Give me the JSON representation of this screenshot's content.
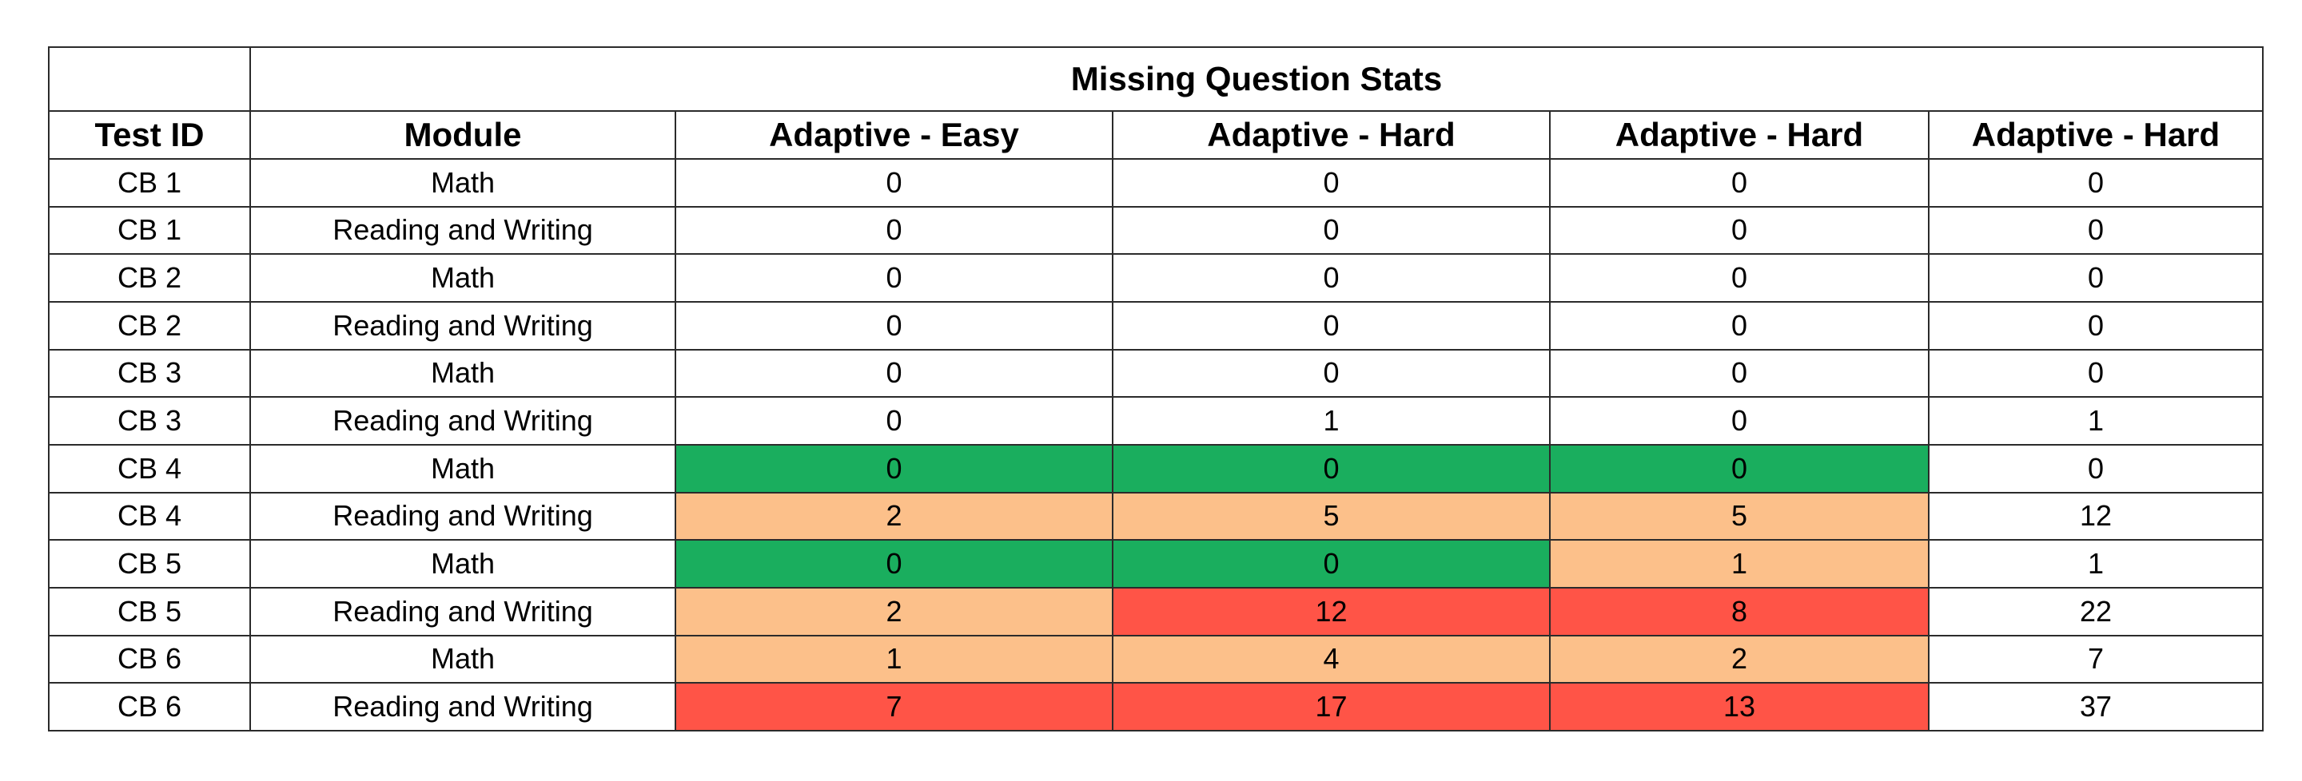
{
  "table": {
    "title": "Missing Question Stats",
    "headers": [
      "Test ID",
      "Module",
      "Adaptive - Easy",
      "Adaptive - Hard",
      "Adaptive - Hard",
      "Adaptive - Hard"
    ],
    "rows": [
      {
        "test_id": "CB 1",
        "module": "Math",
        "values": [
          "0",
          "0",
          "0",
          "0"
        ],
        "fills": [
          "none",
          "none",
          "none",
          "none"
        ]
      },
      {
        "test_id": "CB 1",
        "module": "Reading and Writing",
        "values": [
          "0",
          "0",
          "0",
          "0"
        ],
        "fills": [
          "none",
          "none",
          "none",
          "none"
        ]
      },
      {
        "test_id": "CB 2",
        "module": "Math",
        "values": [
          "0",
          "0",
          "0",
          "0"
        ],
        "fills": [
          "none",
          "none",
          "none",
          "none"
        ]
      },
      {
        "test_id": "CB 2",
        "module": "Reading and Writing",
        "values": [
          "0",
          "0",
          "0",
          "0"
        ],
        "fills": [
          "none",
          "none",
          "none",
          "none"
        ]
      },
      {
        "test_id": "CB 3",
        "module": "Math",
        "values": [
          "0",
          "0",
          "0",
          "0"
        ],
        "fills": [
          "none",
          "none",
          "none",
          "none"
        ]
      },
      {
        "test_id": "CB 3",
        "module": "Reading and Writing",
        "values": [
          "0",
          "1",
          "0",
          "1"
        ],
        "fills": [
          "none",
          "none",
          "none",
          "none"
        ]
      },
      {
        "test_id": "CB 4",
        "module": "Math",
        "values": [
          "0",
          "0",
          "0",
          "0"
        ],
        "fills": [
          "green",
          "green",
          "green",
          "none"
        ]
      },
      {
        "test_id": "CB 4",
        "module": "Reading and Writing",
        "values": [
          "2",
          "5",
          "5",
          "12"
        ],
        "fills": [
          "orange",
          "orange",
          "orange",
          "none"
        ]
      },
      {
        "test_id": "CB 5",
        "module": "Math",
        "values": [
          "0",
          "0",
          "1",
          "1"
        ],
        "fills": [
          "green",
          "green",
          "orange",
          "none"
        ]
      },
      {
        "test_id": "CB 5",
        "module": "Reading and Writing",
        "values": [
          "2",
          "12",
          "8",
          "22"
        ],
        "fills": [
          "orange",
          "red",
          "red",
          "none"
        ]
      },
      {
        "test_id": "CB 6",
        "module": "Math",
        "values": [
          "1",
          "4",
          "2",
          "7"
        ],
        "fills": [
          "orange",
          "orange",
          "orange",
          "none"
        ]
      },
      {
        "test_id": "CB 6",
        "module": "Reading and Writing",
        "values": [
          "7",
          "17",
          "13",
          "37"
        ],
        "fills": [
          "red",
          "red",
          "red",
          "none"
        ]
      }
    ]
  },
  "colors": {
    "green": "#1aae5e",
    "orange": "#fcc08a",
    "red": "#ff5447",
    "none": "#ffffff",
    "border": "#2b2b2b"
  },
  "chart_data": {
    "type": "table",
    "title": "Missing Question Stats",
    "columns": [
      "Test ID",
      "Module",
      "Adaptive - Easy",
      "Adaptive - Hard",
      "Adaptive - Hard",
      "Adaptive - Hard"
    ],
    "rows": [
      [
        "CB 1",
        "Math",
        0,
        0,
        0,
        0
      ],
      [
        "CB 1",
        "Reading and Writing",
        0,
        0,
        0,
        0
      ],
      [
        "CB 2",
        "Math",
        0,
        0,
        0,
        0
      ],
      [
        "CB 2",
        "Reading and Writing",
        0,
        0,
        0,
        0
      ],
      [
        "CB 3",
        "Math",
        0,
        0,
        0,
        0
      ],
      [
        "CB 3",
        "Reading and Writing",
        0,
        1,
        0,
        1
      ],
      [
        "CB 4",
        "Math",
        0,
        0,
        0,
        0
      ],
      [
        "CB 4",
        "Reading and Writing",
        2,
        5,
        5,
        12
      ],
      [
        "CB 5",
        "Math",
        0,
        0,
        1,
        1
      ],
      [
        "CB 5",
        "Reading and Writing",
        2,
        12,
        8,
        22
      ],
      [
        "CB 6",
        "Math",
        1,
        4,
        2,
        7
      ],
      [
        "CB 6",
        "Reading and Writing",
        7,
        17,
        13,
        37
      ]
    ]
  }
}
